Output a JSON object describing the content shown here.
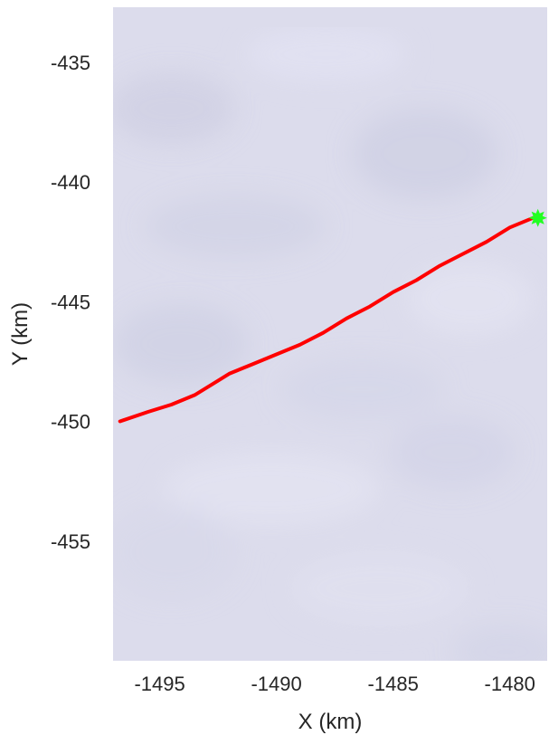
{
  "chart_data": {
    "type": "line",
    "title": "",
    "xlabel": "X (km)",
    "ylabel": "Y (km)",
    "xlim": [
      -1497,
      -1478.4
    ],
    "ylim": [
      -460,
      -432.7
    ],
    "xticks": [
      -1495,
      -1490,
      -1485,
      -1480
    ],
    "yticks": [
      -435,
      -440,
      -445,
      -450,
      -455
    ],
    "background": "satellite imagery (pale blue-grey ice surface)",
    "grid": false,
    "series": [
      {
        "color": "#ff0000",
        "x": [
          -1496.7,
          -1495.5,
          -1494.5,
          -1493.5,
          -1492.5,
          -1492.0,
          -1491.0,
          -1490.0,
          -1489.0,
          -1488.0,
          -1487.0,
          -1486.0,
          -1485.0,
          -1484.0,
          -1483.0,
          -1482.0,
          -1481.0,
          -1480.0,
          -1479.0
        ],
        "y": [
          -450.0,
          -449.6,
          -449.3,
          -448.9,
          -448.3,
          -448.0,
          -447.6,
          -447.2,
          -446.8,
          -446.3,
          -445.7,
          -445.2,
          -444.6,
          -444.1,
          -443.5,
          -443.0,
          -442.5,
          -441.9,
          -441.5
        ]
      }
    ],
    "markers": [
      {
        "x": -1478.8,
        "y": -441.5,
        "color": "#22ff22",
        "shape": "star"
      }
    ]
  }
}
